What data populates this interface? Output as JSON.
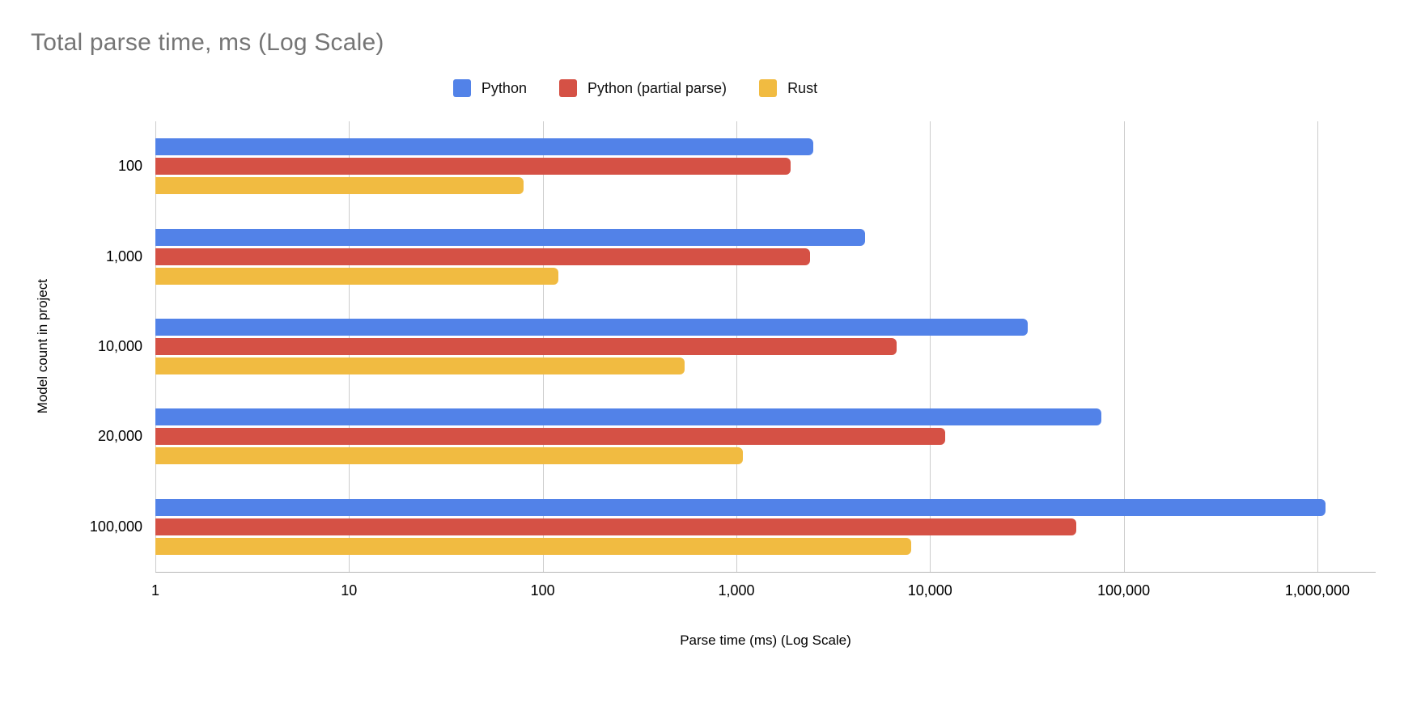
{
  "title": "Total parse time, ms (Log Scale)",
  "chart_data": {
    "type": "bar",
    "orientation": "horizontal",
    "log_scale": true,
    "title": "Total parse time, ms (Log Scale)",
    "xlabel": "Parse time (ms) (Log Scale)",
    "ylabel": "Model count in project",
    "categories": [
      "100",
      "1,000",
      "10,000",
      "20,000",
      "100,000"
    ],
    "series": [
      {
        "name": "Python",
        "color": "#5282E8",
        "values": [
          2500,
          4600,
          32000,
          77000,
          1100000
        ]
      },
      {
        "name": "Python (partial parse)",
        "color": "#D55145",
        "values": [
          1900,
          2400,
          6700,
          12000,
          57000
        ]
      },
      {
        "name": "Rust",
        "color": "#F1BB41",
        "values": [
          80,
          120,
          540,
          1080,
          8000
        ]
      }
    ],
    "x_ticks": [
      "1",
      "10",
      "100",
      "1,000",
      "10,000",
      "100,000",
      "1,000,000"
    ],
    "x_tick_values": [
      1,
      10,
      100,
      1000,
      10000,
      100000,
      1000000
    ],
    "xlim": [
      1,
      2000000
    ],
    "grid": true,
    "legend_position": "top",
    "gridline_color": "#cccccc",
    "axis_line_color": "#b7b7b7",
    "title_color": "#757575"
  }
}
